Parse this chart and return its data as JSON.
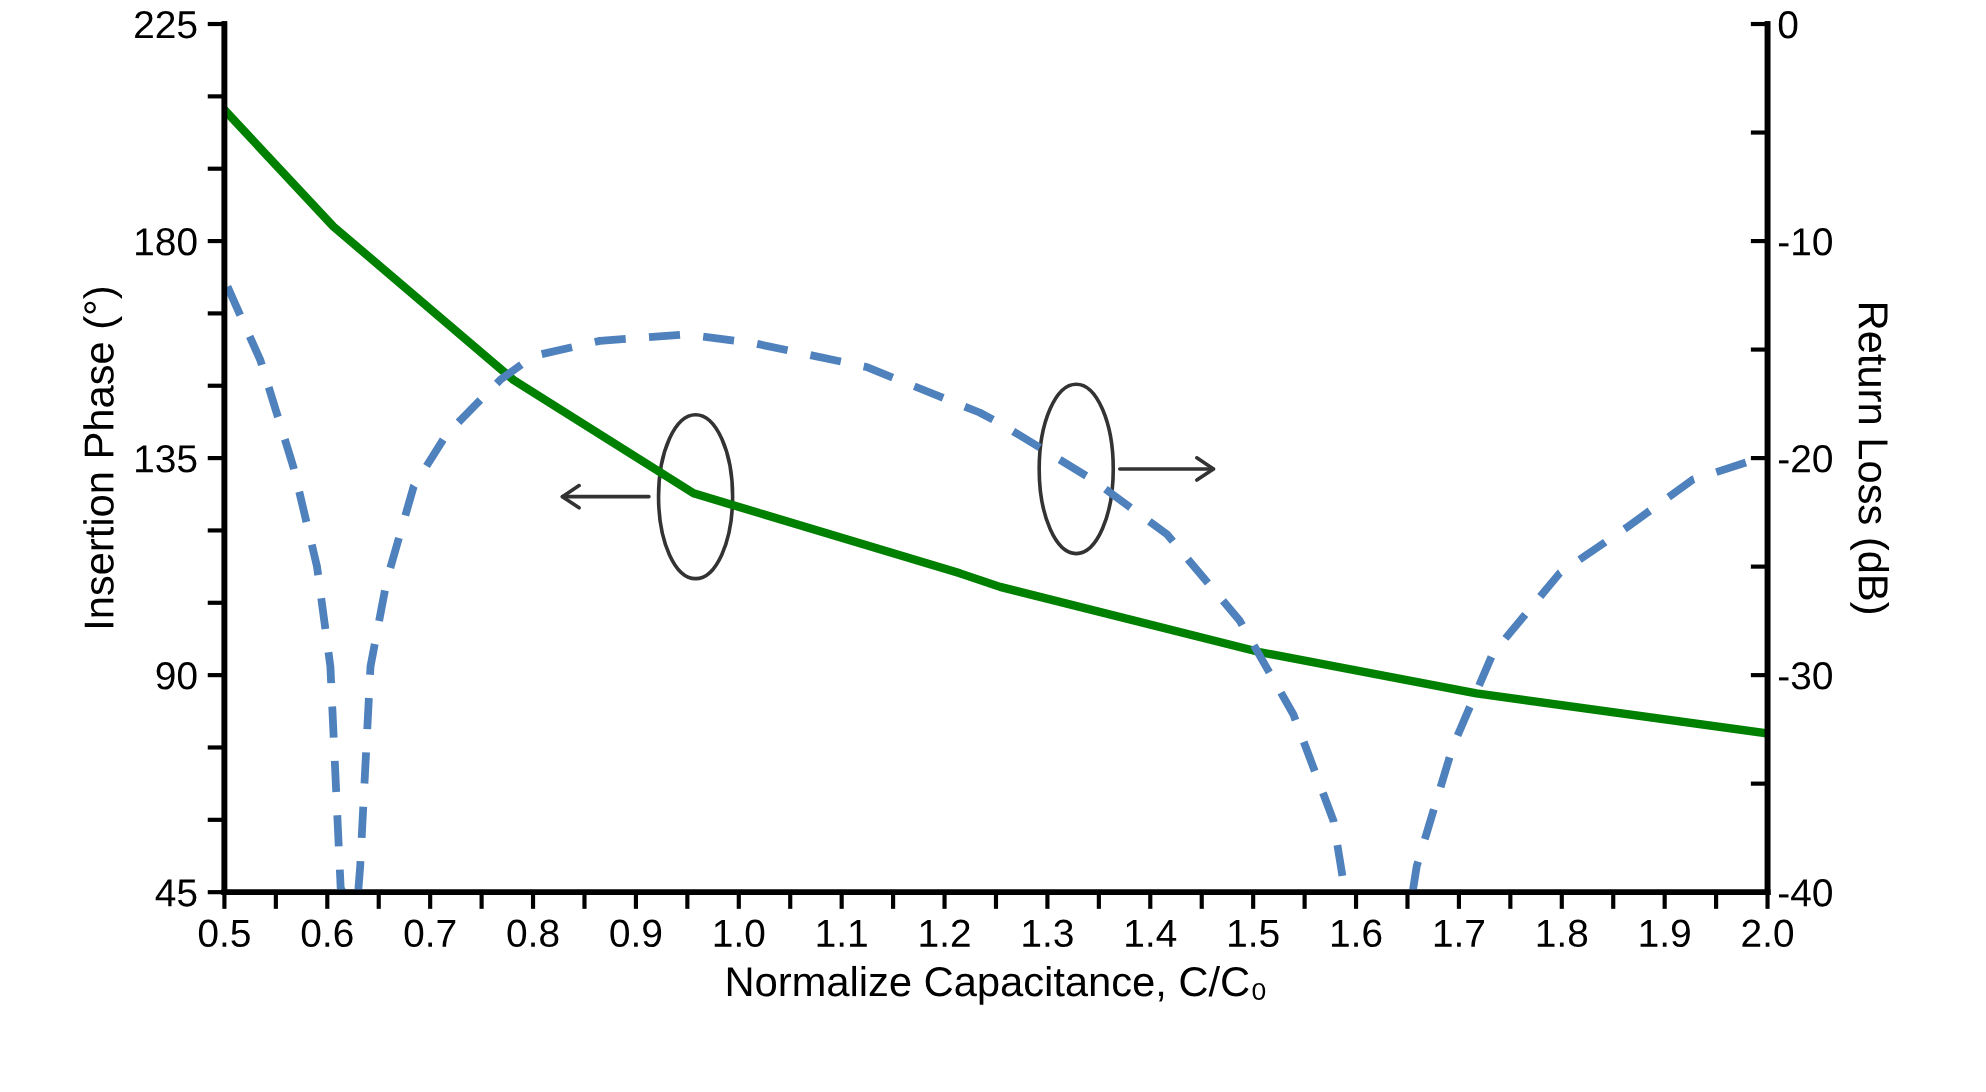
{
  "chart_data": {
    "type": "line",
    "xlabel": "Normalize Capacitance, C/C₀",
    "ylabel": "Insertion Phase (°)",
    "y2label": "Return Loss (dB)",
    "xlim": [
      0.5,
      2.0
    ],
    "xticks": [
      {
        "value": 0.5,
        "label": "0.5"
      },
      {
        "value": 0.55,
        "label": null
      },
      {
        "value": 0.6,
        "label": "0.6"
      },
      {
        "value": 0.65,
        "label": null
      },
      {
        "value": 0.7,
        "label": "0.7"
      },
      {
        "value": 0.75,
        "label": null
      },
      {
        "value": 0.8,
        "label": "0.8"
      },
      {
        "value": 0.85,
        "label": null
      },
      {
        "value": 0.9,
        "label": "0.9"
      },
      {
        "value": 0.95,
        "label": null
      },
      {
        "value": 1.0,
        "label": "1.0"
      },
      {
        "value": 1.05,
        "label": null
      },
      {
        "value": 1.1,
        "label": "1.1"
      },
      {
        "value": 1.15,
        "label": null
      },
      {
        "value": 1.2,
        "label": "1.2"
      },
      {
        "value": 1.25,
        "label": null
      },
      {
        "value": 1.3,
        "label": "1.3"
      },
      {
        "value": 1.35,
        "label": null
      },
      {
        "value": 1.4,
        "label": "1.4"
      },
      {
        "value": 1.45,
        "label": null
      },
      {
        "value": 1.5,
        "label": "1.5"
      },
      {
        "value": 1.55,
        "label": null
      },
      {
        "value": 1.6,
        "label": "1.6"
      },
      {
        "value": 1.65,
        "label": null
      },
      {
        "value": 1.7,
        "label": "1.7"
      },
      {
        "value": 1.75,
        "label": null
      },
      {
        "value": 1.8,
        "label": "1.8"
      },
      {
        "value": 1.85,
        "label": null
      },
      {
        "value": 1.9,
        "label": "1.9"
      },
      {
        "value": 1.95,
        "label": null
      },
      {
        "value": 2.0,
        "label": "2.0"
      }
    ],
    "ylim": [
      45,
      225
    ],
    "yticks": [
      45,
      {
        "value": 60,
        "label": null
      },
      {
        "value": 75,
        "label": null
      },
      90,
      {
        "value": 105,
        "label": null
      },
      {
        "value": 120,
        "label": null
      },
      135,
      {
        "value": 150,
        "label": null
      },
      {
        "value": 165,
        "label": null
      },
      180,
      {
        "value": 195,
        "label": null
      },
      {
        "value": 210,
        "label": null
      },
      225
    ],
    "y2lim": [
      -40,
      0
    ],
    "y2ticks": [
      -40,
      {
        "value": -35,
        "label": null
      },
      -30,
      {
        "value": -25,
        "label": null
      },
      -20,
      {
        "value": -15,
        "label": null
      },
      -10,
      {
        "value": -5,
        "label": null
      },
      0
    ],
    "grid": false,
    "legend": false,
    "series": [
      {
        "color": "#008000",
        "line_style": "solid",
        "x": [
          0.5,
          0.606,
          0.781,
          0.956,
          1.215,
          1.254,
          1.506,
          1.717,
          2.0
        ],
        "values": [
          207.2,
          183.0,
          151.2,
          127.7,
          111.1,
          108.3,
          94.8,
          86.2,
          77.9
        ]
      },
      {
        "color": "#4f81bd",
        "line_style": "dashed",
        "axis": "y2",
        "x": [
          0.503,
          0.535,
          0.567,
          0.59,
          0.603,
          0.613,
          0.615,
          0.62,
          0.63,
          0.632,
          0.642,
          0.658,
          0.684,
          0.716,
          0.768,
          0.8,
          0.865,
          0.949,
          1.014,
          1.124,
          1.234,
          1.254,
          1.344,
          1.416,
          1.487,
          1.539,
          1.578,
          1.589,
          1.59,
          1.62,
          1.655,
          1.659,
          1.694,
          1.733,
          1.798,
          1.863,
          1.927,
          1.999
        ],
        "values": [
          -12.1,
          -15.5,
          -20.4,
          -25.0,
          -29.6,
          -39.8,
          -40,
          null,
          -40,
          -38.8,
          -29.6,
          -25.6,
          -21.3,
          -18.9,
          -16.4,
          -15.3,
          -14.6,
          -14.3,
          -14.7,
          -15.8,
          -17.9,
          -18.4,
          -21.0,
          -23.5,
          -27.5,
          -31.8,
          -36.7,
          -39.9,
          -40,
          null,
          -40,
          -38.8,
          -33.3,
          -29.0,
          -25.3,
          -23.2,
          -21.0,
          -19.9
        ]
      }
    ]
  }
}
